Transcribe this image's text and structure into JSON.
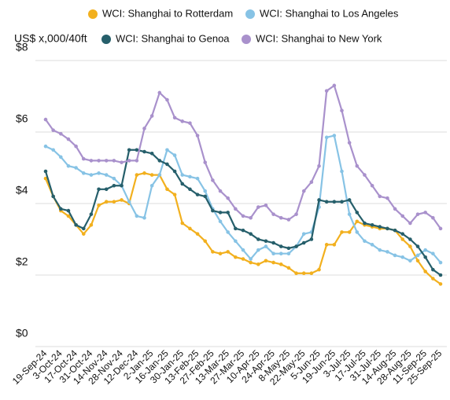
{
  "chart_data": {
    "type": "line",
    "ylabel": "US$ x,000/40ft",
    "categories": [
      "19-Sep-24",
      null,
      "3-Oct-24",
      null,
      "17-Oct-24",
      null,
      "31-Oct-24",
      null,
      "14-Nov-24",
      null,
      "28-Nov-24",
      null,
      "12-Dec-24",
      null,
      "2-Jan-25",
      null,
      "16-Jan-25",
      null,
      "30-Jan-25",
      null,
      "13-Feb-25",
      null,
      "27-Feb-25",
      null,
      "13-Mar-25",
      null,
      "27-Mar-25",
      null,
      "10-Apr-25",
      null,
      "24-Apr-25",
      null,
      "8-May-25",
      null,
      "22-May-25",
      null,
      "5-Jun-25",
      null,
      "19-Jun-25",
      null,
      "3-Jul-25",
      null,
      "17-Jul-25",
      null,
      "31-Jul-25",
      null,
      "14-Aug-25",
      null,
      "28-Aug-25",
      null,
      "11-Sep-25",
      null,
      "25-Sep-25"
    ],
    "series": [
      {
        "name": "WCI: Shanghai to Rotterdam",
        "color": "#f2b01e",
        "values": [
          4.7,
          4.2,
          3.8,
          3.65,
          3.4,
          3.15,
          3.4,
          3.95,
          4.05,
          4.05,
          4.1,
          4.0,
          4.8,
          4.85,
          4.8,
          4.8,
          4.4,
          4.25,
          3.45,
          3.3,
          3.15,
          2.95,
          2.65,
          2.6,
          2.65,
          2.5,
          2.45,
          2.35,
          2.3,
          2.4,
          2.35,
          2.3,
          2.2,
          2.05,
          2.05,
          2.05,
          2.15,
          2.85,
          2.85,
          3.2,
          3.2,
          3.5,
          3.4,
          3.35,
          3.3,
          3.3,
          3.25,
          3.0,
          2.8,
          2.4,
          2.1,
          1.9,
          1.75
        ]
      },
      {
        "name": "WCI: Shanghai to Los Angeles",
        "color": "#87c3e5",
        "values": [
          5.6,
          5.5,
          5.3,
          5.05,
          5.0,
          4.85,
          4.8,
          4.85,
          4.8,
          4.7,
          4.5,
          4.05,
          3.65,
          3.6,
          4.5,
          4.8,
          5.5,
          5.35,
          4.8,
          4.75,
          4.7,
          4.35,
          3.85,
          3.5,
          3.2,
          2.95,
          2.7,
          2.45,
          2.7,
          2.8,
          2.6,
          2.6,
          2.6,
          2.8,
          3.15,
          3.2,
          3.9,
          5.85,
          5.9,
          4.9,
          3.7,
          3.2,
          2.95,
          2.85,
          2.7,
          2.65,
          2.55,
          2.5,
          2.4,
          2.55,
          2.7,
          2.6,
          2.35
        ]
      },
      {
        "name": "WCI: Shanghai to Genoa",
        "color": "#265f6b",
        "values": [
          4.9,
          4.2,
          3.85,
          3.8,
          3.4,
          3.3,
          3.7,
          4.4,
          4.4,
          4.5,
          4.5,
          5.5,
          5.5,
          5.45,
          5.4,
          5.2,
          5.1,
          4.9,
          4.55,
          4.4,
          4.25,
          4.2,
          3.8,
          3.75,
          3.75,
          3.3,
          3.25,
          3.15,
          3.0,
          2.95,
          2.9,
          2.8,
          2.75,
          2.8,
          2.9,
          3.0,
          4.1,
          4.05,
          4.05,
          4.05,
          4.1,
          3.75,
          3.45,
          3.4,
          3.35,
          3.3,
          3.25,
          3.15,
          3.0,
          2.8,
          2.5,
          2.15,
          2.0
        ]
      },
      {
        "name": "WCI: Shanghai to New York",
        "color": "#a991cc",
        "values": [
          6.35,
          6.05,
          5.95,
          5.8,
          5.6,
          5.25,
          5.2,
          5.2,
          5.2,
          5.2,
          5.15,
          5.2,
          5.2,
          6.1,
          6.45,
          7.1,
          6.9,
          6.4,
          6.3,
          6.25,
          5.9,
          5.15,
          4.65,
          4.35,
          4.15,
          3.85,
          3.65,
          3.6,
          3.9,
          3.95,
          3.7,
          3.6,
          3.55,
          3.7,
          4.35,
          4.6,
          5.05,
          7.15,
          7.3,
          6.6,
          5.7,
          5.05,
          4.8,
          4.5,
          4.2,
          4.15,
          3.85,
          3.65,
          3.45,
          3.7,
          3.75,
          3.6,
          3.3
        ]
      }
    ],
    "ylim": [
      0,
      8
    ],
    "yticks": [
      {
        "value": 0,
        "label": "$0"
      },
      {
        "value": 2,
        "label": "$2"
      },
      {
        "value": 4,
        "label": "$4"
      },
      {
        "value": 6,
        "label": "$6"
      },
      {
        "value": 8,
        "label": "$8"
      }
    ],
    "grid": true,
    "legend": "top"
  }
}
